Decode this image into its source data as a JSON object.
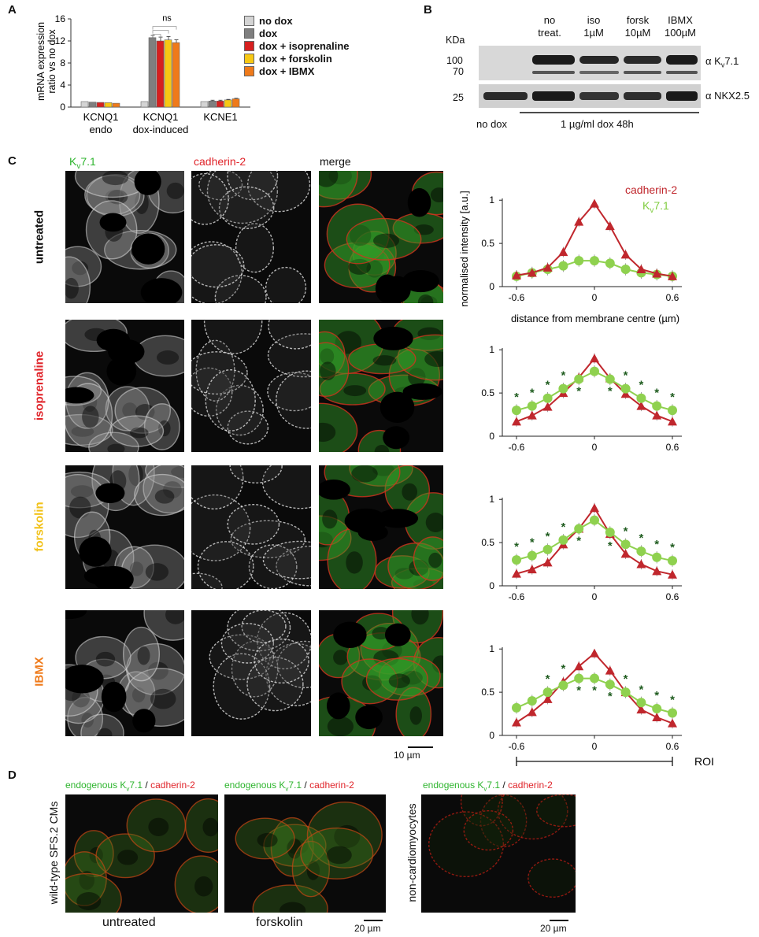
{
  "panels": {
    "a": "A",
    "b": "B",
    "c": "C",
    "d": "D"
  },
  "panelA": {
    "chart_data": {
      "type": "bar",
      "ylabel_line1": "mRNA expression",
      "ylabel_line2": "ratio vs no dox",
      "yticks": [
        0,
        4,
        8,
        12,
        16
      ],
      "ylim": [
        0,
        16
      ],
      "groups": [
        {
          "line1": "KCNQ1",
          "line2": "endo",
          "values": [
            1.0,
            0.9,
            0.85,
            0.8,
            0.7
          ],
          "errors": [
            0.05,
            0.05,
            0.05,
            0.05,
            0.05
          ]
        },
        {
          "line1": "KCNQ1",
          "line2": "dox-induced",
          "values": [
            1.0,
            12.6,
            12.0,
            12.2,
            11.7
          ],
          "errors": [
            0.05,
            0.4,
            0.7,
            0.6,
            0.5
          ]
        },
        {
          "line1": "KCNE1",
          "line2": "",
          "values": [
            1.0,
            1.1,
            1.1,
            1.3,
            1.5
          ],
          "errors": [
            0.05,
            0.15,
            0.15,
            0.1,
            0.1
          ]
        }
      ],
      "series": [
        {
          "name": "no dox",
          "color": "#d4d4d4"
        },
        {
          "name": "dox",
          "color": "#7f7f7f"
        },
        {
          "name": "dox + isoprenaline",
          "color": "#d6201f"
        },
        {
          "name": "dox + forskolin",
          "color": "#f7c814"
        },
        {
          "name": "dox + IBMX",
          "color": "#ef7a1a"
        }
      ],
      "annotation": "ns"
    }
  },
  "panelB": {
    "kda": "KDa",
    "markers": [
      "100",
      "70",
      "25"
    ],
    "cols": [
      {
        "l1": "no",
        "l2": "treat."
      },
      {
        "l1": "iso",
        "l2": "1µM"
      },
      {
        "l1": "forsk",
        "l2": "10µM"
      },
      {
        "l1": "IBMX",
        "l2": "100µM"
      }
    ],
    "right_top_a": "α K",
    "right_top_sub": "v",
    "right_top_b": "7.1",
    "right_bottom": "α NKX2.5",
    "nodox": "no dox",
    "dox": "1 µg/ml dox 48h"
  },
  "panelC": {
    "col_kv_a": "K",
    "col_kv_sub": "v",
    "col_kv_b": "7.1",
    "col_cad": "cadherin-2",
    "col_merge": "merge",
    "rows": [
      {
        "label": "untreated",
        "color": "#111111"
      },
      {
        "label": "isoprenaline",
        "color": "#e0242a"
      },
      {
        "label": "forskolin",
        "color": "#f2c21a"
      },
      {
        "label": "IBMX",
        "color": "#ef7a1a"
      }
    ],
    "scalebar": "10 µm",
    "xlabel": "distance from membrane centre (µm)",
    "ylabel": "normalised intensity [a.u.]",
    "legend_cad": "cadherin-2",
    "legend_kv_a": "K",
    "legend_kv_sub": "v",
    "legend_kv_b": "7.1",
    "roi": "ROI",
    "chart_data": {
      "type": "line",
      "x": [
        -0.6,
        -0.48,
        -0.36,
        -0.24,
        -0.12,
        0,
        0.12,
        0.24,
        0.36,
        0.48,
        0.6
      ],
      "xticks": [
        "-0.6",
        "0",
        "0.6"
      ],
      "yticks": [
        "0",
        "0.5",
        "1"
      ],
      "ylim": [
        0,
        1
      ],
      "colors": {
        "cad": "#c0272d",
        "kv": "#8fd14f",
        "star": "#1f5c1f"
      },
      "plots": [
        {
          "cad": [
            0.13,
            0.16,
            0.22,
            0.4,
            0.75,
            0.96,
            0.7,
            0.37,
            0.2,
            0.15,
            0.12
          ],
          "kv": [
            0.12,
            0.16,
            0.2,
            0.24,
            0.3,
            0.3,
            0.27,
            0.2,
            0.16,
            0.14,
            0.12
          ],
          "stars": []
        },
        {
          "cad": [
            0.17,
            0.24,
            0.34,
            0.5,
            0.68,
            0.9,
            0.67,
            0.49,
            0.35,
            0.24,
            0.17
          ],
          "kv": [
            0.3,
            0.35,
            0.44,
            0.55,
            0.66,
            0.75,
            0.66,
            0.55,
            0.44,
            0.35,
            0.3
          ],
          "stars": [
            [
              0,
              "above"
            ],
            [
              1,
              "above"
            ],
            [
              2,
              "above"
            ],
            [
              3,
              "above"
            ],
            [
              4,
              "below"
            ],
            [
              6,
              "below"
            ],
            [
              7,
              "above"
            ],
            [
              8,
              "above"
            ],
            [
              9,
              "above"
            ],
            [
              10,
              "above"
            ]
          ]
        },
        {
          "cad": [
            0.14,
            0.19,
            0.27,
            0.48,
            0.66,
            0.9,
            0.6,
            0.37,
            0.25,
            0.17,
            0.13
          ],
          "kv": [
            0.3,
            0.35,
            0.42,
            0.53,
            0.66,
            0.76,
            0.62,
            0.48,
            0.4,
            0.33,
            0.29
          ],
          "stars": [
            [
              0,
              "above"
            ],
            [
              1,
              "above"
            ],
            [
              2,
              "above"
            ],
            [
              3,
              "above"
            ],
            [
              4,
              "below"
            ],
            [
              6,
              "below"
            ],
            [
              7,
              "above"
            ],
            [
              8,
              "above"
            ],
            [
              9,
              "above"
            ],
            [
              10,
              "above"
            ]
          ]
        },
        {
          "cad": [
            0.15,
            0.27,
            0.42,
            0.62,
            0.8,
            0.95,
            0.75,
            0.5,
            0.3,
            0.21,
            0.14
          ],
          "kv": [
            0.32,
            0.4,
            0.5,
            0.58,
            0.66,
            0.66,
            0.59,
            0.5,
            0.38,
            0.31,
            0.26
          ],
          "stars": [
            [
              2,
              "above"
            ],
            [
              3,
              "above"
            ],
            [
              4,
              "below"
            ],
            [
              5,
              "below"
            ],
            [
              6,
              "below"
            ],
            [
              7,
              "above"
            ],
            [
              8,
              "above"
            ],
            [
              9,
              "above"
            ],
            [
              10,
              "above"
            ]
          ]
        }
      ]
    }
  },
  "panelD": {
    "title_a": "endogenous K",
    "title_sub": "v",
    "title_b": "7.1",
    "title_sep": " / ",
    "title_c": "cadherin-2",
    "side": "wild-type SFS.2 CMs",
    "nonc": "non-cardiomyocytes",
    "untreated": "untreated",
    "forskolin": "forskolin",
    "scalebar": "20 µm"
  }
}
